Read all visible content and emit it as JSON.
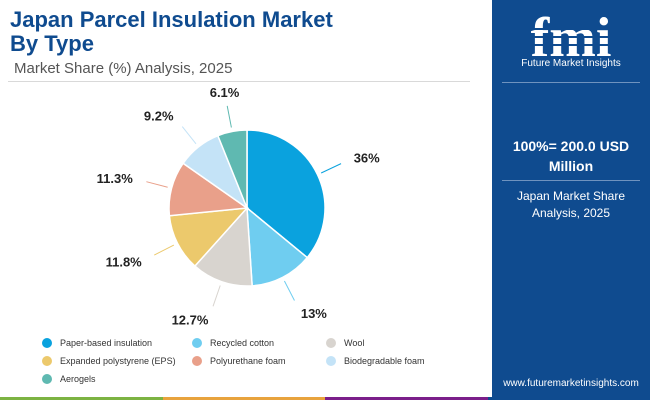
{
  "header": {
    "title_line1": "Japan Parcel Insulation Market",
    "title_line2": "By Type",
    "subtitle": "Market Share (%) Analysis, 2025"
  },
  "side_panel": {
    "logo_text": "fmi",
    "logo_subtitle": "Future Market Insights",
    "total_line1": "100%= 200.0 USD",
    "total_line2": "Million",
    "market_line1": "Japan Market Share",
    "market_line2": "Analysis, 2025",
    "website": "www.futuremarketinsights.com"
  },
  "colors": {
    "brand_blue": "#0f4b8f",
    "bottom_bar": [
      "#7cb342",
      "#e8a33d",
      "#7b1f8a",
      "#0f4b8f"
    ]
  },
  "chart_data": {
    "type": "pie",
    "categories": [
      "Paper-based insulation",
      "Recycled cotton",
      "Wool",
      "Expanded polystyrene (EPS)",
      "Polyurethane foam",
      "Biodegradable foam",
      "Aerogels"
    ],
    "values": [
      36,
      13,
      12.7,
      11.8,
      11.3,
      9.2,
      6.1
    ],
    "labels": [
      "36%",
      "13%",
      "12.7%",
      "11.8%",
      "11.3%",
      "9.2%",
      "6.1%"
    ],
    "colors": [
      "#0aa2de",
      "#6fcdf0",
      "#d8d4cf",
      "#ecc96c",
      "#e9a08a",
      "#c4e3f7",
      "#5fb9b1"
    ],
    "legend_position": "bottom"
  }
}
